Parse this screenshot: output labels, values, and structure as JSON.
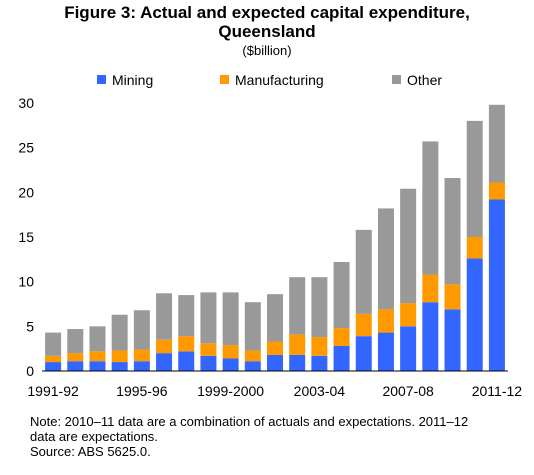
{
  "chart_data": {
    "type": "bar",
    "stacked": true,
    "title_line1": "Figure 3: Actual and expected capital expenditure,",
    "title_line2": "Queensland",
    "subtitle": "($billion)",
    "categories": [
      "1991-92",
      "1992-93",
      "1993-94",
      "1994-95",
      "1995-96",
      "1996-97",
      "1997-98",
      "1998-99",
      "1999-2000",
      "2000-01",
      "2001-02",
      "2002-03",
      "2003-04",
      "2004-05",
      "2005-06",
      "2006-07",
      "2007-08",
      "2008-09",
      "2009-10",
      "2010-11",
      "2011-12"
    ],
    "x_tick_labels": [
      "1991-92",
      "1995-96",
      "1999-2000",
      "2003-04",
      "2007-08",
      "2011-12"
    ],
    "ylim": [
      0,
      30
    ],
    "yticks": [
      0,
      5,
      10,
      15,
      20,
      25,
      30
    ],
    "legend_position": "top",
    "series": [
      {
        "name": "Mining",
        "color": "#3366ff",
        "values": [
          1.0,
          1.1,
          1.1,
          1.0,
          1.1,
          2.0,
          2.2,
          1.7,
          1.4,
          1.1,
          1.8,
          1.8,
          1.7,
          2.8,
          3.9,
          4.3,
          5.0,
          7.7,
          6.9,
          12.6,
          19.2
        ]
      },
      {
        "name": "Manufacturing",
        "color": "#ff9900",
        "values": [
          0.7,
          0.9,
          1.1,
          1.3,
          1.3,
          1.5,
          1.7,
          1.4,
          1.5,
          1.2,
          1.5,
          2.3,
          2.1,
          2.0,
          2.5,
          2.6,
          2.6,
          3.1,
          2.8,
          2.4,
          1.9
        ]
      },
      {
        "name": "Other",
        "color": "#999999",
        "values": [
          2.6,
          2.7,
          2.8,
          4.0,
          4.4,
          5.2,
          4.6,
          5.7,
          5.9,
          5.4,
          5.3,
          6.4,
          6.7,
          7.4,
          9.4,
          11.3,
          12.8,
          14.9,
          11.9,
          13.0,
          8.7
        ]
      }
    ]
  },
  "notes": {
    "line1": "Note: 2010–11 data are a combination of actuals and expectations. 2011–12",
    "line2": "data are expectations.",
    "line3": "Source: ABS 5625.0."
  }
}
